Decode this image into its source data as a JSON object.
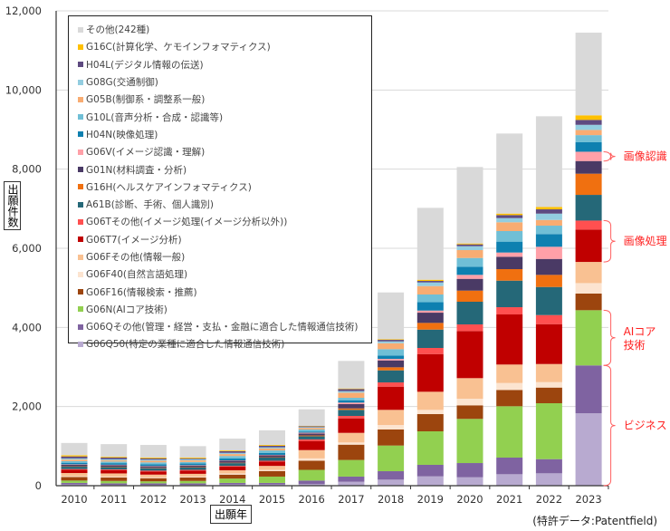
{
  "chart_data": {
    "type": "bar",
    "stacked": true,
    "title": "",
    "xlabel": "出願年",
    "ylabel": "出願件数",
    "ylim": [
      0,
      12000
    ],
    "yticks": [
      0,
      2000,
      4000,
      6000,
      8000,
      10000,
      12000
    ],
    "ytick_labels": [
      "0",
      "2,000",
      "4,000",
      "6,000",
      "8,000",
      "10,000",
      "12,000"
    ],
    "grid": true,
    "legend_placement": "top-left",
    "categories": [
      "2010",
      "2011",
      "2012",
      "2013",
      "2014",
      "2015",
      "2016",
      "2017",
      "2018",
      "2019",
      "2020",
      "2021",
      "2022",
      "2023"
    ],
    "series": [
      {
        "name": "G06Q50(特定の業種に適合した情報通信技術)",
        "color": "#b8aad0",
        "values": [
          30,
          20,
          20,
          20,
          30,
          30,
          40,
          100,
          153,
          236,
          213,
          290,
          313,
          1830
        ]
      },
      {
        "name": "G06Qその他(管理・経営・支払・金融に適合した情報通信技術)",
        "color": "#7f63a1",
        "values": [
          40,
          40,
          40,
          40,
          40,
          40,
          90,
          130,
          213,
          291,
          359,
          420,
          358,
          1210
        ]
      },
      {
        "name": "G06N(AIコア技術)",
        "color": "#92d050",
        "values": [
          60,
          60,
          50,
          60,
          110,
          160,
          270,
          420,
          649,
          847,
          1116,
          1298,
          1413,
          1395
        ]
      },
      {
        "name": "G06F16(情報検索・推薦)",
        "color": "#9c450e",
        "values": [
          90,
          90,
          80,
          90,
          100,
          140,
          230,
          387,
          405,
          435,
          343,
          412,
          396,
          420
        ]
      },
      {
        "name": "G06F40(自然言語処理)",
        "color": "#fce4d0",
        "values": [
          20,
          20,
          20,
          20,
          30,
          30,
          60,
          55,
          114,
          107,
          167,
          175,
          137,
          265
        ]
      },
      {
        "name": "G06Fその他(情報一般)",
        "color": "#f9c192",
        "values": [
          80,
          80,
          70,
          70,
          80,
          100,
          210,
          243,
          382,
          458,
          520,
          467,
          458,
          535
        ]
      },
      {
        "name": "G06T7(イメージ分析)",
        "color": "#c00000",
        "values": [
          80,
          80,
          80,
          80,
          90,
          110,
          230,
          367,
          587,
          953,
          1191,
          1266,
          1008,
          818
        ]
      },
      {
        "name": "G06Tその他(イメージ処理(イメージ分析以外))",
        "color": "#ff5050",
        "values": [
          20,
          20,
          20,
          20,
          20,
          20,
          40,
          61,
          107,
          154,
          167,
          183,
          229,
          227
        ]
      },
      {
        "name": "A61B(診断、手術、個人識別)",
        "color": "#256878",
        "values": [
          60,
          60,
          60,
          60,
          70,
          80,
          80,
          153,
          305,
          464,
          573,
          671,
          710,
          650
        ]
      },
      {
        "name": "G16H(ヘルスケアインフォマティクス)",
        "color": "#f07010",
        "values": [
          10,
          10,
          10,
          10,
          10,
          10,
          20,
          37,
          77,
          169,
          281,
          291,
          306,
          535
        ]
      },
      {
        "name": "G01N(材料調査・分析)",
        "color": "#4a3a65",
        "values": [
          40,
          40,
          40,
          40,
          50,
          50,
          50,
          108,
          174,
          259,
          298,
          313,
          403,
          320
        ]
      },
      {
        "name": "G06V(イメージ認識・理解)",
        "color": "#ffa0a8",
        "values": [
          10,
          10,
          10,
          10,
          10,
          10,
          20,
          39,
          39,
          53,
          100,
          107,
          307,
          235
        ]
      },
      {
        "name": "H04N(映像処理)",
        "color": "#0e80b0",
        "values": [
          40,
          40,
          40,
          40,
          50,
          50,
          30,
          60,
          85,
          214,
          206,
          275,
          321,
          245
        ]
      },
      {
        "name": "G10L(音声分析・合成・認識等)",
        "color": "#70bfd6",
        "values": [
          40,
          40,
          50,
          40,
          60,
          60,
          50,
          61,
          160,
          192,
          221,
          267,
          213,
          175
        ]
      },
      {
        "name": "G05B(制御系・調整系一般)",
        "color": "#f8ac72",
        "values": [
          40,
          30,
          40,
          40,
          50,
          50,
          40,
          130,
          151,
          213,
          199,
          222,
          144,
          130
        ]
      },
      {
        "name": "G08G(交通制御)",
        "color": "#93cde0",
        "values": [
          30,
          30,
          30,
          30,
          30,
          30,
          20,
          38,
          46,
          92,
          99,
          106,
          160,
          130
        ]
      },
      {
        "name": "H04L(デジタル情報の伝送)",
        "color": "#5e4a80",
        "values": [
          50,
          40,
          30,
          20,
          40,
          40,
          20,
          54,
          39,
          38,
          46,
          76,
          108,
          125
        ]
      },
      {
        "name": "G16C(計算化学、ケモインフォマティクス)",
        "color": "#ffc000",
        "values": [
          30,
          20,
          20,
          20,
          20,
          20,
          10,
          14,
          16,
          30,
          23,
          38,
          62,
          115
        ]
      },
      {
        "name": "その他(242種)",
        "color": "#d9d9d9",
        "values": [
          310,
          320,
          320,
          290,
          300,
          370,
          420,
          696,
          1182,
          1818,
          1932,
          2023,
          2290,
          2090
        ]
      }
    ],
    "annotations": [
      {
        "label": "画像認識",
        "category": "2023",
        "series_range": [
          11,
          11
        ],
        "color": "#ff2020"
      },
      {
        "label": "画像処理",
        "category": "2023",
        "series_range": [
          6,
          7
        ],
        "color": "#ff2020"
      },
      {
        "label": "AIコア\n技術",
        "lines": [
          "AIコア",
          "技術"
        ],
        "category": "2023",
        "series_range": [
          2,
          2
        ],
        "color": "#ff2020"
      },
      {
        "label": "ビジネス",
        "category": "2023",
        "series_range": [
          0,
          1
        ],
        "color": "#ff2020"
      }
    ],
    "source": "(特許データ:Patentfield)"
  }
}
